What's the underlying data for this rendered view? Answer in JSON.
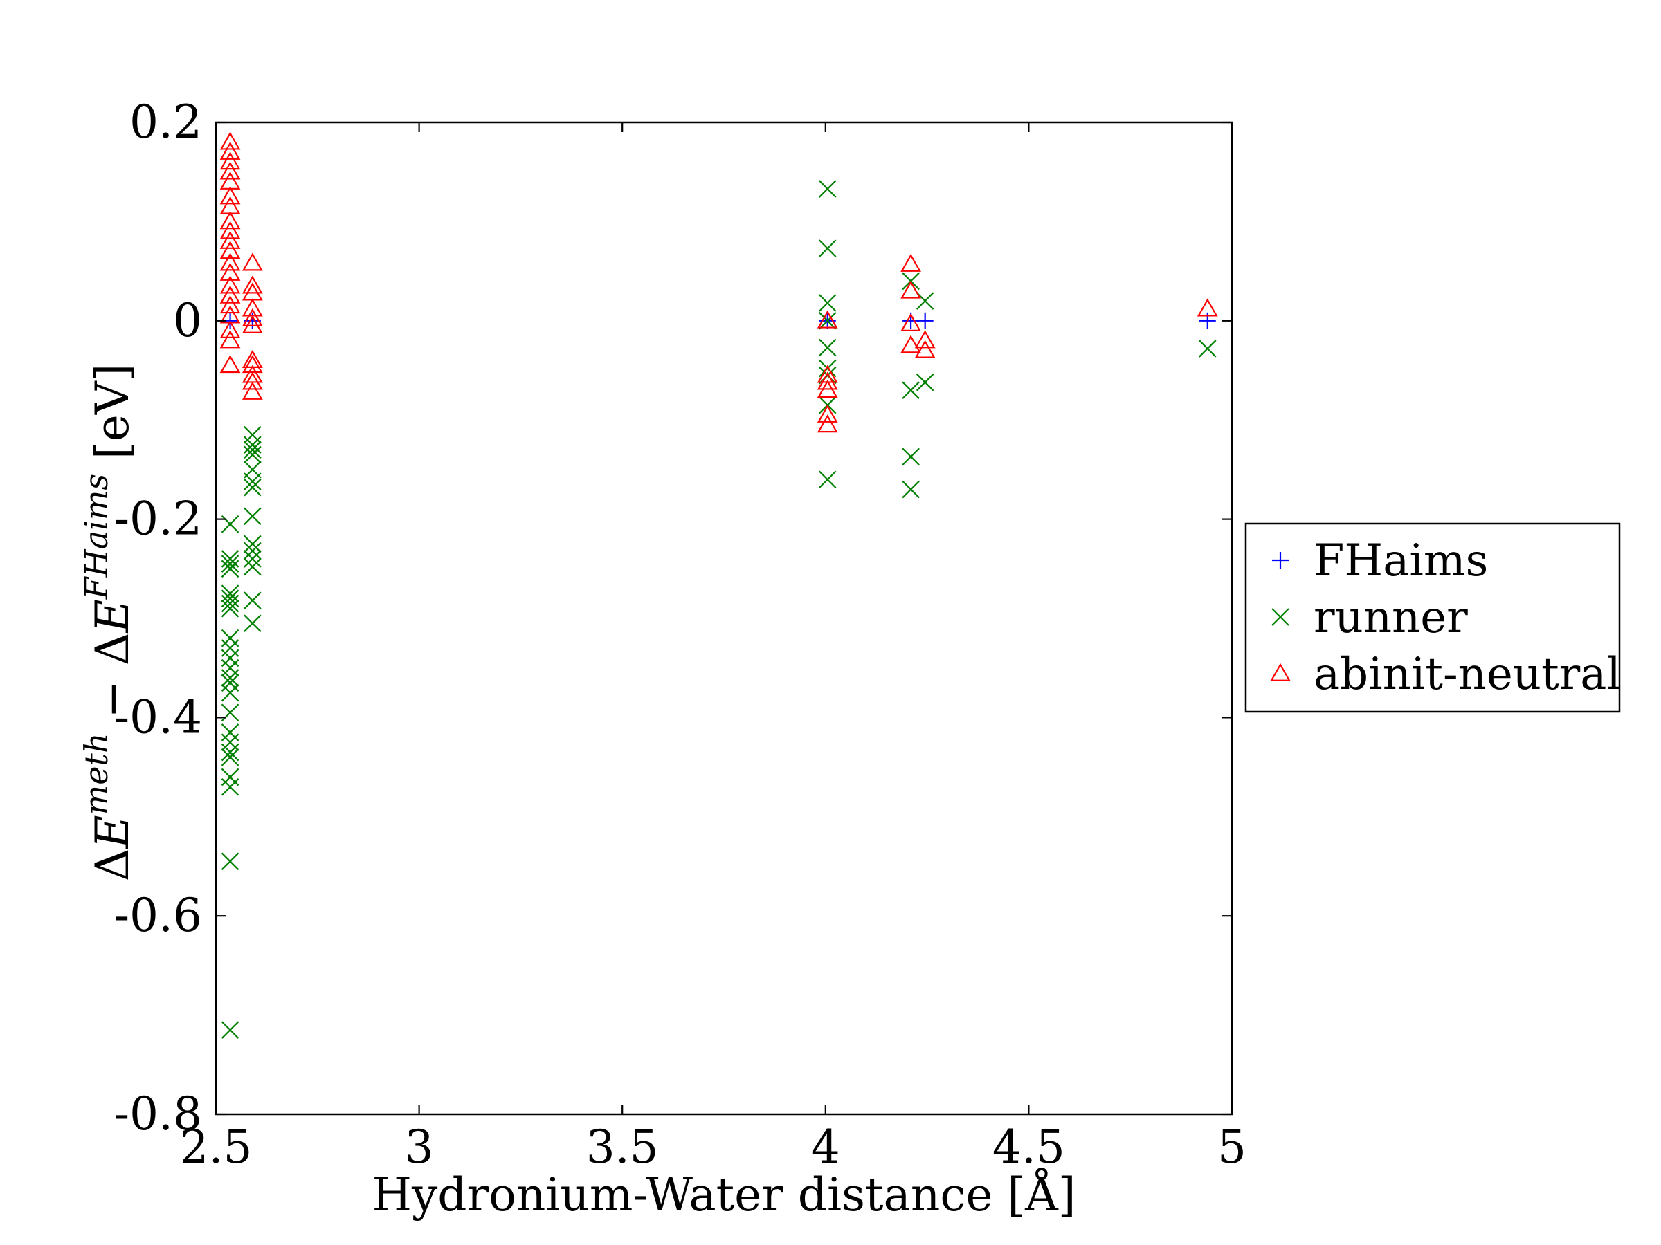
{
  "chart_data": {
    "type": "scatter",
    "xlabel": "Hydronium-Water distance [Å]",
    "ylabel": {
      "delta1": "Δ",
      "E1": "E",
      "sup1": "meth",
      "minus": " − ",
      "delta2": "Δ",
      "E2": "E",
      "sup2": "FHaims",
      "unit": " [eV]"
    },
    "xlim": [
      2.5,
      5
    ],
    "ylim": [
      -0.8,
      0.2
    ],
    "xticks": [
      2.5,
      3,
      3.5,
      4,
      4.5,
      5
    ],
    "xtick_labels": [
      "2.5",
      "3",
      "3.5",
      "4",
      "4.5",
      "5"
    ],
    "yticks": [
      0.2,
      0,
      -0.2,
      -0.4,
      -0.6,
      -0.8
    ],
    "ytick_labels": [
      "0.2",
      "0",
      "-0.2",
      "-0.4",
      "-0.6",
      "-0.8"
    ],
    "grid": false,
    "legend_position": "outside-right",
    "series": [
      {
        "name": "FHaims",
        "marker": "plus",
        "color": "#0000ff",
        "points": [
          [
            2.535,
            0
          ],
          [
            2.59,
            0
          ],
          [
            4.005,
            0
          ],
          [
            4.21,
            0
          ],
          [
            4.245,
            0
          ],
          [
            4.94,
            0
          ]
        ]
      },
      {
        "name": "runner",
        "marker": "x",
        "color": "#008000",
        "points": [
          [
            4.005,
            0.133
          ],
          [
            4.005,
            0.073
          ],
          [
            4.005,
            0.018
          ],
          [
            4.005,
            0
          ],
          [
            4.005,
            -0.027
          ],
          [
            4.005,
            -0.048
          ],
          [
            4.005,
            -0.055
          ],
          [
            4.005,
            -0.085
          ],
          [
            4.005,
            -0.16
          ],
          [
            4.21,
            0.04
          ],
          [
            4.21,
            -0.07
          ],
          [
            4.21,
            -0.137
          ],
          [
            4.21,
            -0.17
          ],
          [
            4.245,
            0.02
          ],
          [
            4.245,
            -0.062
          ],
          [
            4.94,
            -0.028
          ],
          [
            2.59,
            -0.115
          ],
          [
            2.59,
            -0.125
          ],
          [
            2.59,
            -0.13
          ],
          [
            2.59,
            -0.135
          ],
          [
            2.59,
            -0.15
          ],
          [
            2.59,
            -0.162
          ],
          [
            2.59,
            -0.168
          ],
          [
            2.59,
            -0.197
          ],
          [
            2.59,
            -0.225
          ],
          [
            2.59,
            -0.232
          ],
          [
            2.59,
            -0.24
          ],
          [
            2.59,
            -0.248
          ],
          [
            2.59,
            -0.282
          ],
          [
            2.59,
            -0.305
          ],
          [
            2.535,
            -0.205
          ],
          [
            2.535,
            -0.24
          ],
          [
            2.535,
            -0.245
          ],
          [
            2.535,
            -0.25
          ],
          [
            2.535,
            -0.275
          ],
          [
            2.535,
            -0.28
          ],
          [
            2.535,
            -0.285
          ],
          [
            2.535,
            -0.29
          ],
          [
            2.535,
            -0.32
          ],
          [
            2.535,
            -0.33
          ],
          [
            2.535,
            -0.34
          ],
          [
            2.535,
            -0.35
          ],
          [
            2.535,
            -0.36
          ],
          [
            2.535,
            -0.365
          ],
          [
            2.535,
            -0.375
          ],
          [
            2.535,
            -0.395
          ],
          [
            2.535,
            -0.415
          ],
          [
            2.535,
            -0.425
          ],
          [
            2.535,
            -0.435
          ],
          [
            2.535,
            -0.44
          ],
          [
            2.535,
            -0.46
          ],
          [
            2.535,
            -0.47
          ],
          [
            2.535,
            -0.545
          ],
          [
            2.535,
            -0.715
          ]
        ]
      },
      {
        "name": "abinit-neutral",
        "marker": "triangle",
        "color": "#ff0000",
        "points": [
          [
            2.535,
            0.18
          ],
          [
            2.535,
            0.17
          ],
          [
            2.535,
            0.16
          ],
          [
            2.535,
            0.15
          ],
          [
            2.535,
            0.14
          ],
          [
            2.535,
            0.125
          ],
          [
            2.535,
            0.115
          ],
          [
            2.535,
            0.1
          ],
          [
            2.535,
            0.09
          ],
          [
            2.535,
            0.08
          ],
          [
            2.535,
            0.07
          ],
          [
            2.535,
            0.058
          ],
          [
            2.535,
            0.048
          ],
          [
            2.535,
            0.035
          ],
          [
            2.535,
            0.025
          ],
          [
            2.535,
            0.015
          ],
          [
            2.535,
            0.005
          ],
          [
            2.535,
            -0.01
          ],
          [
            2.535,
            -0.02
          ],
          [
            2.535,
            -0.045
          ],
          [
            2.59,
            0.058
          ],
          [
            2.59,
            0.035
          ],
          [
            2.59,
            0.028
          ],
          [
            2.59,
            0.012
          ],
          [
            2.59,
            0.002
          ],
          [
            2.59,
            -0.005
          ],
          [
            2.59,
            -0.04
          ],
          [
            2.59,
            -0.045
          ],
          [
            2.59,
            -0.055
          ],
          [
            2.59,
            -0.062
          ],
          [
            2.59,
            -0.072
          ],
          [
            4.005,
            0
          ],
          [
            4.005,
            -0.055
          ],
          [
            4.005,
            -0.062
          ],
          [
            4.005,
            -0.07
          ],
          [
            4.005,
            -0.095
          ],
          [
            4.005,
            -0.105
          ],
          [
            4.21,
            0.057
          ],
          [
            4.21,
            0.03
          ],
          [
            4.21,
            -0.003
          ],
          [
            4.21,
            -0.025
          ],
          [
            4.245,
            -0.02
          ],
          [
            4.245,
            -0.03
          ],
          [
            4.94,
            0.012
          ]
        ]
      }
    ]
  },
  "colors": {
    "axes": "#000000",
    "background": "#ffffff"
  }
}
